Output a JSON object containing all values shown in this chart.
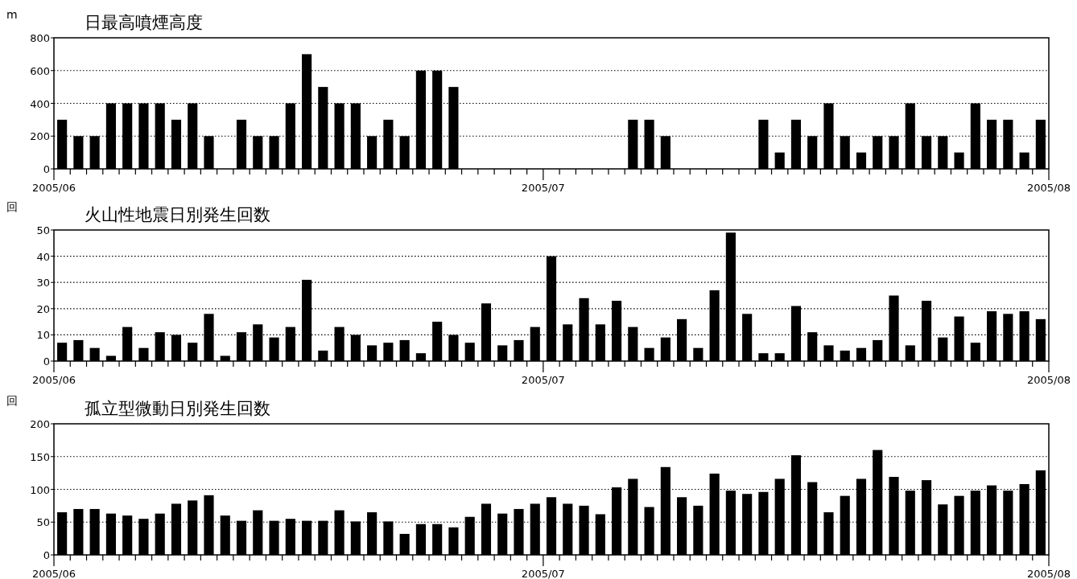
{
  "chart_data": [
    {
      "type": "bar",
      "title": "日最高噴煙高度",
      "ylabel": "m",
      "grid": "y",
      "ylim": [
        0,
        800
      ],
      "yticks": [
        0,
        200,
        400,
        600,
        800
      ],
      "xlim": [
        "2005-06-01",
        "2005-08-01"
      ],
      "xticks": [
        {
          "value": "2005-06-01",
          "label": "2005/06"
        },
        {
          "value": "2005-06-02",
          "label": null
        },
        {
          "value": "2005-06-03",
          "label": null
        },
        {
          "value": "2005-06-04",
          "label": null
        },
        {
          "value": "2005-06-05",
          "label": null
        },
        {
          "value": "2005-06-06",
          "label": null
        },
        {
          "value": "2005-06-07",
          "label": null
        },
        {
          "value": "2005-06-08",
          "label": null
        },
        {
          "value": "2005-06-09",
          "label": null
        },
        {
          "value": "2005-06-10",
          "label": null
        },
        {
          "value": "2005-06-11",
          "label": null
        },
        {
          "value": "2005-06-12",
          "label": null
        },
        {
          "value": "2005-06-13",
          "label": null
        },
        {
          "value": "2005-06-14",
          "label": null
        },
        {
          "value": "2005-06-15",
          "label": null
        },
        {
          "value": "2005-06-16",
          "label": null
        },
        {
          "value": "2005-06-17",
          "label": null
        },
        {
          "value": "2005-06-18",
          "label": null
        },
        {
          "value": "2005-06-19",
          "label": null
        },
        {
          "value": "2005-06-20",
          "label": null
        },
        {
          "value": "2005-06-21",
          "label": null
        },
        {
          "value": "2005-06-22",
          "label": null
        },
        {
          "value": "2005-06-23",
          "label": null
        },
        {
          "value": "2005-06-24",
          "label": null
        },
        {
          "value": "2005-06-25",
          "label": null
        },
        {
          "value": "2005-06-26",
          "label": null
        },
        {
          "value": "2005-06-27",
          "label": null
        },
        {
          "value": "2005-06-28",
          "label": null
        },
        {
          "value": "2005-06-29",
          "label": null
        },
        {
          "value": "2005-06-30",
          "label": null
        },
        {
          "value": "2005-07-01",
          "label": "2005/07"
        },
        {
          "value": "2005-07-02",
          "label": null
        },
        {
          "value": "2005-07-03",
          "label": null
        },
        {
          "value": "2005-07-04",
          "label": null
        },
        {
          "value": "2005-07-05",
          "label": null
        },
        {
          "value": "2005-07-06",
          "label": null
        },
        {
          "value": "2005-07-07",
          "label": null
        },
        {
          "value": "2005-07-08",
          "label": null
        },
        {
          "value": "2005-07-09",
          "label": null
        },
        {
          "value": "2005-07-10",
          "label": null
        },
        {
          "value": "2005-07-11",
          "label": null
        },
        {
          "value": "2005-07-12",
          "label": null
        },
        {
          "value": "2005-07-13",
          "label": null
        },
        {
          "value": "2005-07-14",
          "label": null
        },
        {
          "value": "2005-07-15",
          "label": null
        },
        {
          "value": "2005-07-16",
          "label": null
        },
        {
          "value": "2005-07-17",
          "label": null
        },
        {
          "value": "2005-07-18",
          "label": null
        },
        {
          "value": "2005-07-19",
          "label": null
        },
        {
          "value": "2005-07-20",
          "label": null
        },
        {
          "value": "2005-07-21",
          "label": null
        },
        {
          "value": "2005-07-22",
          "label": null
        },
        {
          "value": "2005-07-23",
          "label": null
        },
        {
          "value": "2005-07-24",
          "label": null
        },
        {
          "value": "2005-07-25",
          "label": null
        },
        {
          "value": "2005-07-26",
          "label": null
        },
        {
          "value": "2005-07-27",
          "label": null
        },
        {
          "value": "2005-07-28",
          "label": null
        },
        {
          "value": "2005-07-29",
          "label": null
        },
        {
          "value": "2005-07-30",
          "label": null
        },
        {
          "value": "2005-07-31",
          "label": null
        },
        {
          "value": "2005-08-01",
          "label": "2005/08"
        }
      ],
      "x": [
        "2005-06-01T12:00",
        "2005-06-02T12:00",
        "2005-06-03T12:00",
        "2005-06-04T12:00",
        "2005-06-05T12:00",
        "2005-06-06T12:00",
        "2005-06-07T12:00",
        "2005-06-08T12:00",
        "2005-06-09T12:00",
        "2005-06-10T12:00",
        "2005-06-11T12:00",
        "2005-06-12T12:00",
        "2005-06-13T12:00",
        "2005-06-14T12:00",
        "2005-06-15T12:00",
        "2005-06-16T12:00",
        "2005-06-17T12:00",
        "2005-06-18T12:00",
        "2005-06-19T12:00",
        "2005-06-20T12:00",
        "2005-06-21T12:00",
        "2005-06-22T12:00",
        "2005-06-23T12:00",
        "2005-06-24T12:00",
        "2005-06-25T12:00",
        "2005-06-26T12:00",
        "2005-06-27T12:00",
        "2005-06-28T12:00",
        "2005-06-29T12:00",
        "2005-06-30T12:00",
        "2005-07-01T12:00",
        "2005-07-02T12:00",
        "2005-07-03T12:00",
        "2005-07-04T12:00",
        "2005-07-05T12:00",
        "2005-07-06T12:00",
        "2005-07-07T12:00",
        "2005-07-08T12:00",
        "2005-07-09T12:00",
        "2005-07-10T12:00",
        "2005-07-11T12:00",
        "2005-07-12T12:00",
        "2005-07-13T12:00",
        "2005-07-14T12:00",
        "2005-07-15T12:00",
        "2005-07-16T12:00",
        "2005-07-17T12:00",
        "2005-07-18T12:00",
        "2005-07-19T12:00",
        "2005-07-20T12:00",
        "2005-07-21T12:00",
        "2005-07-22T12:00",
        "2005-07-23T12:00",
        "2005-07-24T12:00",
        "2005-07-25T12:00",
        "2005-07-26T12:00",
        "2005-07-27T12:00",
        "2005-07-28T12:00",
        "2005-07-29T12:00",
        "2005-07-30T12:00",
        "2005-07-31T12:00"
      ],
      "series": [
        {
          "color": "#000000",
          "values": [
            300,
            200,
            200,
            400,
            400,
            400,
            400,
            300,
            400,
            200,
            null,
            300,
            200,
            200,
            400,
            700,
            500,
            400,
            400,
            200,
            300,
            200,
            600,
            600,
            500,
            null,
            null,
            null,
            null,
            null,
            null,
            null,
            null,
            null,
            null,
            300,
            300,
            200,
            null,
            null,
            null,
            null,
            null,
            300,
            100,
            300,
            200,
            400,
            200,
            100,
            200,
            200,
            400,
            200,
            200,
            100,
            400,
            300,
            300,
            100,
            300
          ]
        }
      ]
    },
    {
      "type": "bar",
      "title": "火山性地震日別発生回数",
      "ylabel": "回",
      "grid": "y",
      "ylim": [
        0,
        50
      ],
      "yticks": [
        0,
        10,
        20,
        30,
        40,
        50
      ],
      "xlim": [
        "2005-06-01",
        "2005-08-01"
      ],
      "xticks": [
        {
          "value": "2005-06-01",
          "label": "2005/06"
        },
        {
          "value": "2005-06-02",
          "label": null
        },
        {
          "value": "2005-06-03",
          "label": null
        },
        {
          "value": "2005-06-04",
          "label": null
        },
        {
          "value": "2005-06-05",
          "label": null
        },
        {
          "value": "2005-06-06",
          "label": null
        },
        {
          "value": "2005-06-07",
          "label": null
        },
        {
          "value": "2005-06-08",
          "label": null
        },
        {
          "value": "2005-06-09",
          "label": null
        },
        {
          "value": "2005-06-10",
          "label": null
        },
        {
          "value": "2005-06-11",
          "label": null
        },
        {
          "value": "2005-06-12",
          "label": null
        },
        {
          "value": "2005-06-13",
          "label": null
        },
        {
          "value": "2005-06-14",
          "label": null
        },
        {
          "value": "2005-06-15",
          "label": null
        },
        {
          "value": "2005-06-16",
          "label": null
        },
        {
          "value": "2005-06-17",
          "label": null
        },
        {
          "value": "2005-06-18",
          "label": null
        },
        {
          "value": "2005-06-19",
          "label": null
        },
        {
          "value": "2005-06-20",
          "label": null
        },
        {
          "value": "2005-06-21",
          "label": null
        },
        {
          "value": "2005-06-22",
          "label": null
        },
        {
          "value": "2005-06-23",
          "label": null
        },
        {
          "value": "2005-06-24",
          "label": null
        },
        {
          "value": "2005-06-25",
          "label": null
        },
        {
          "value": "2005-06-26",
          "label": null
        },
        {
          "value": "2005-06-27",
          "label": null
        },
        {
          "value": "2005-06-28",
          "label": null
        },
        {
          "value": "2005-06-29",
          "label": null
        },
        {
          "value": "2005-06-30",
          "label": null
        },
        {
          "value": "2005-07-01",
          "label": "2005/07"
        },
        {
          "value": "2005-07-02",
          "label": null
        },
        {
          "value": "2005-07-03",
          "label": null
        },
        {
          "value": "2005-07-04",
          "label": null
        },
        {
          "value": "2005-07-05",
          "label": null
        },
        {
          "value": "2005-07-06",
          "label": null
        },
        {
          "value": "2005-07-07",
          "label": null
        },
        {
          "value": "2005-07-08",
          "label": null
        },
        {
          "value": "2005-07-09",
          "label": null
        },
        {
          "value": "2005-07-10",
          "label": null
        },
        {
          "value": "2005-07-11",
          "label": null
        },
        {
          "value": "2005-07-12",
          "label": null
        },
        {
          "value": "2005-07-13",
          "label": null
        },
        {
          "value": "2005-07-14",
          "label": null
        },
        {
          "value": "2005-07-15",
          "label": null
        },
        {
          "value": "2005-07-16",
          "label": null
        },
        {
          "value": "2005-07-17",
          "label": null
        },
        {
          "value": "2005-07-18",
          "label": null
        },
        {
          "value": "2005-07-19",
          "label": null
        },
        {
          "value": "2005-07-20",
          "label": null
        },
        {
          "value": "2005-07-21",
          "label": null
        },
        {
          "value": "2005-07-22",
          "label": null
        },
        {
          "value": "2005-07-23",
          "label": null
        },
        {
          "value": "2005-07-24",
          "label": null
        },
        {
          "value": "2005-07-25",
          "label": null
        },
        {
          "value": "2005-07-26",
          "label": null
        },
        {
          "value": "2005-07-27",
          "label": null
        },
        {
          "value": "2005-07-28",
          "label": null
        },
        {
          "value": "2005-07-29",
          "label": null
        },
        {
          "value": "2005-07-30",
          "label": null
        },
        {
          "value": "2005-07-31",
          "label": null
        },
        {
          "value": "2005-08-01",
          "label": "2005/08"
        }
      ],
      "x": [
        "2005-06-01T12:00",
        "2005-06-02T12:00",
        "2005-06-03T12:00",
        "2005-06-04T12:00",
        "2005-06-05T12:00",
        "2005-06-06T12:00",
        "2005-06-07T12:00",
        "2005-06-08T12:00",
        "2005-06-09T12:00",
        "2005-06-10T12:00",
        "2005-06-11T12:00",
        "2005-06-12T12:00",
        "2005-06-13T12:00",
        "2005-06-14T12:00",
        "2005-06-15T12:00",
        "2005-06-16T12:00",
        "2005-06-17T12:00",
        "2005-06-18T12:00",
        "2005-06-19T12:00",
        "2005-06-20T12:00",
        "2005-06-21T12:00",
        "2005-06-22T12:00",
        "2005-06-23T12:00",
        "2005-06-24T12:00",
        "2005-06-25T12:00",
        "2005-06-26T12:00",
        "2005-06-27T12:00",
        "2005-06-28T12:00",
        "2005-06-29T12:00",
        "2005-06-30T12:00",
        "2005-07-01T12:00",
        "2005-07-02T12:00",
        "2005-07-03T12:00",
        "2005-07-04T12:00",
        "2005-07-05T12:00",
        "2005-07-06T12:00",
        "2005-07-07T12:00",
        "2005-07-08T12:00",
        "2005-07-09T12:00",
        "2005-07-10T12:00",
        "2005-07-11T12:00",
        "2005-07-12T12:00",
        "2005-07-13T12:00",
        "2005-07-14T12:00",
        "2005-07-15T12:00",
        "2005-07-16T12:00",
        "2005-07-17T12:00",
        "2005-07-18T12:00",
        "2005-07-19T12:00",
        "2005-07-20T12:00",
        "2005-07-21T12:00",
        "2005-07-22T12:00",
        "2005-07-23T12:00",
        "2005-07-24T12:00",
        "2005-07-25T12:00",
        "2005-07-26T12:00",
        "2005-07-27T12:00",
        "2005-07-28T12:00",
        "2005-07-29T12:00",
        "2005-07-30T12:00",
        "2005-07-31T12:00"
      ],
      "series": [
        {
          "color": "#000000",
          "values": [
            7,
            8,
            5,
            2,
            13,
            5,
            11,
            10,
            7,
            18,
            2,
            11,
            14,
            9,
            13,
            31,
            4,
            13,
            10,
            6,
            7,
            8,
            3,
            15,
            10,
            7,
            22,
            6,
            8,
            13,
            40,
            14,
            24,
            14,
            23,
            13,
            5,
            9,
            16,
            5,
            27,
            49,
            18,
            3,
            3,
            21,
            11,
            6,
            4,
            5,
            8,
            25,
            6,
            23,
            9,
            17,
            7,
            19,
            18,
            19,
            16
          ]
        }
      ]
    },
    {
      "type": "bar",
      "title": "孤立型微動日別発生回数",
      "ylabel": "回",
      "grid": "y",
      "ylim": [
        0,
        200
      ],
      "yticks": [
        0,
        50,
        100,
        150,
        200
      ],
      "xlim": [
        "2005-06-01",
        "2005-08-01"
      ],
      "xticks": [
        {
          "value": "2005-06-01",
          "label": "2005/06"
        },
        {
          "value": "2005-06-02",
          "label": null
        },
        {
          "value": "2005-06-03",
          "label": null
        },
        {
          "value": "2005-06-04",
          "label": null
        },
        {
          "value": "2005-06-05",
          "label": null
        },
        {
          "value": "2005-06-06",
          "label": null
        },
        {
          "value": "2005-06-07",
          "label": null
        },
        {
          "value": "2005-06-08",
          "label": null
        },
        {
          "value": "2005-06-09",
          "label": null
        },
        {
          "value": "2005-06-10",
          "label": null
        },
        {
          "value": "2005-06-11",
          "label": null
        },
        {
          "value": "2005-06-12",
          "label": null
        },
        {
          "value": "2005-06-13",
          "label": null
        },
        {
          "value": "2005-06-14",
          "label": null
        },
        {
          "value": "2005-06-15",
          "label": null
        },
        {
          "value": "2005-06-16",
          "label": null
        },
        {
          "value": "2005-06-17",
          "label": null
        },
        {
          "value": "2005-06-18",
          "label": null
        },
        {
          "value": "2005-06-19",
          "label": null
        },
        {
          "value": "2005-06-20",
          "label": null
        },
        {
          "value": "2005-06-21",
          "label": null
        },
        {
          "value": "2005-06-22",
          "label": null
        },
        {
          "value": "2005-06-23",
          "label": null
        },
        {
          "value": "2005-06-24",
          "label": null
        },
        {
          "value": "2005-06-25",
          "label": null
        },
        {
          "value": "2005-06-26",
          "label": null
        },
        {
          "value": "2005-06-27",
          "label": null
        },
        {
          "value": "2005-06-28",
          "label": null
        },
        {
          "value": "2005-06-29",
          "label": null
        },
        {
          "value": "2005-06-30",
          "label": null
        },
        {
          "value": "2005-07-01",
          "label": "2005/07"
        },
        {
          "value": "2005-07-02",
          "label": null
        },
        {
          "value": "2005-07-03",
          "label": null
        },
        {
          "value": "2005-07-04",
          "label": null
        },
        {
          "value": "2005-07-05",
          "label": null
        },
        {
          "value": "2005-07-06",
          "label": null
        },
        {
          "value": "2005-07-07",
          "label": null
        },
        {
          "value": "2005-07-08",
          "label": null
        },
        {
          "value": "2005-07-09",
          "label": null
        },
        {
          "value": "2005-07-10",
          "label": null
        },
        {
          "value": "2005-07-11",
          "label": null
        },
        {
          "value": "2005-07-12",
          "label": null
        },
        {
          "value": "2005-07-13",
          "label": null
        },
        {
          "value": "2005-07-14",
          "label": null
        },
        {
          "value": "2005-07-15",
          "label": null
        },
        {
          "value": "2005-07-16",
          "label": null
        },
        {
          "value": "2005-07-17",
          "label": null
        },
        {
          "value": "2005-07-18",
          "label": null
        },
        {
          "value": "2005-07-19",
          "label": null
        },
        {
          "value": "2005-07-20",
          "label": null
        },
        {
          "value": "2005-07-21",
          "label": null
        },
        {
          "value": "2005-07-22",
          "label": null
        },
        {
          "value": "2005-07-23",
          "label": null
        },
        {
          "value": "2005-07-24",
          "label": null
        },
        {
          "value": "2005-07-25",
          "label": null
        },
        {
          "value": "2005-07-26",
          "label": null
        },
        {
          "value": "2005-07-27",
          "label": null
        },
        {
          "value": "2005-07-28",
          "label": null
        },
        {
          "value": "2005-07-29",
          "label": null
        },
        {
          "value": "2005-07-30",
          "label": null
        },
        {
          "value": "2005-07-31",
          "label": null
        },
        {
          "value": "2005-08-01",
          "label": "2005/08"
        }
      ],
      "x": [
        "2005-06-01T12:00",
        "2005-06-02T12:00",
        "2005-06-03T12:00",
        "2005-06-04T12:00",
        "2005-06-05T12:00",
        "2005-06-06T12:00",
        "2005-06-07T12:00",
        "2005-06-08T12:00",
        "2005-06-09T12:00",
        "2005-06-10T12:00",
        "2005-06-11T12:00",
        "2005-06-12T12:00",
        "2005-06-13T12:00",
        "2005-06-14T12:00",
        "2005-06-15T12:00",
        "2005-06-16T12:00",
        "2005-06-17T12:00",
        "2005-06-18T12:00",
        "2005-06-19T12:00",
        "2005-06-20T12:00",
        "2005-06-21T12:00",
        "2005-06-22T12:00",
        "2005-06-23T12:00",
        "2005-06-24T12:00",
        "2005-06-25T12:00",
        "2005-06-26T12:00",
        "2005-06-27T12:00",
        "2005-06-28T12:00",
        "2005-06-29T12:00",
        "2005-06-30T12:00",
        "2005-07-01T12:00",
        "2005-07-02T12:00",
        "2005-07-03T12:00",
        "2005-07-04T12:00",
        "2005-07-05T12:00",
        "2005-07-06T12:00",
        "2005-07-07T12:00",
        "2005-07-08T12:00",
        "2005-07-09T12:00",
        "2005-07-10T12:00",
        "2005-07-11T12:00",
        "2005-07-12T12:00",
        "2005-07-13T12:00",
        "2005-07-14T12:00",
        "2005-07-15T12:00",
        "2005-07-16T12:00",
        "2005-07-17T12:00",
        "2005-07-18T12:00",
        "2005-07-19T12:00",
        "2005-07-20T12:00",
        "2005-07-21T12:00",
        "2005-07-22T12:00",
        "2005-07-23T12:00",
        "2005-07-24T12:00",
        "2005-07-25T12:00",
        "2005-07-26T12:00",
        "2005-07-27T12:00",
        "2005-07-28T12:00",
        "2005-07-29T12:00",
        "2005-07-30T12:00",
        "2005-07-31T12:00"
      ],
      "series": [
        {
          "color": "#000000",
          "values": [
            65,
            70,
            70,
            63,
            60,
            55,
            63,
            78,
            83,
            91,
            60,
            52,
            68,
            52,
            55,
            52,
            52,
            68,
            51,
            65,
            51,
            32,
            47,
            47,
            42,
            58,
            78,
            63,
            70,
            78,
            88,
            78,
            75,
            62,
            103,
            116,
            73,
            134,
            88,
            75,
            124,
            98,
            93,
            96,
            116,
            152,
            111,
            65,
            90,
            116,
            160,
            119,
            98,
            114,
            77,
            90,
            98,
            106,
            98,
            108,
            129
          ]
        }
      ]
    }
  ]
}
